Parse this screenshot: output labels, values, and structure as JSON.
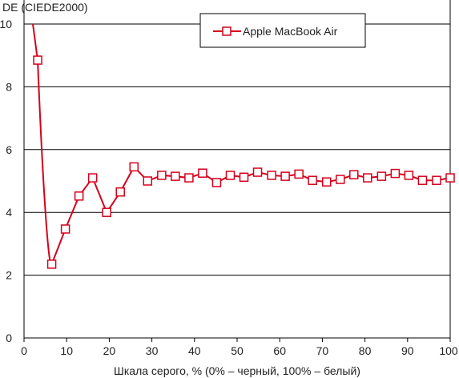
{
  "chart_data": {
    "type": "line",
    "ylabel": "DE (CIEDE2000)",
    "xlabel": "Шкала серого, % (0% – черный, 100% – белый)",
    "xlim": [
      0,
      100
    ],
    "ylim": [
      0,
      10
    ],
    "x_ticks": [
      0,
      10,
      20,
      30,
      40,
      50,
      60,
      70,
      80,
      90,
      100
    ],
    "y_ticks": [
      0,
      2,
      4,
      6,
      8,
      10
    ],
    "grid": "horizontal",
    "legend_position": "top-right",
    "series": [
      {
        "name": "Apple MacBook Air",
        "color": "#d6001c",
        "marker": "square",
        "points": [
          [
            3.2,
            8.85
          ],
          [
            6.5,
            2.35
          ],
          [
            9.7,
            3.47
          ],
          [
            12.9,
            4.52
          ],
          [
            16.1,
            5.1
          ],
          [
            19.4,
            4.0
          ],
          [
            22.6,
            4.65
          ],
          [
            25.8,
            5.45
          ],
          [
            29.0,
            5.0
          ],
          [
            32.3,
            5.18
          ],
          [
            35.5,
            5.15
          ],
          [
            38.7,
            5.1
          ],
          [
            41.9,
            5.25
          ],
          [
            45.2,
            4.95
          ],
          [
            48.4,
            5.18
          ],
          [
            51.6,
            5.12
          ],
          [
            54.8,
            5.28
          ],
          [
            58.1,
            5.18
          ],
          [
            61.3,
            5.15
          ],
          [
            64.5,
            5.22
          ],
          [
            67.7,
            5.02
          ],
          [
            71.0,
            4.97
          ],
          [
            74.2,
            5.05
          ],
          [
            77.4,
            5.2
          ],
          [
            80.6,
            5.1
          ],
          [
            83.9,
            5.15
          ],
          [
            87.1,
            5.24
          ],
          [
            90.3,
            5.18
          ],
          [
            93.5,
            5.02
          ],
          [
            96.8,
            5.02
          ],
          [
            100,
            5.1
          ]
        ]
      }
    ]
  }
}
